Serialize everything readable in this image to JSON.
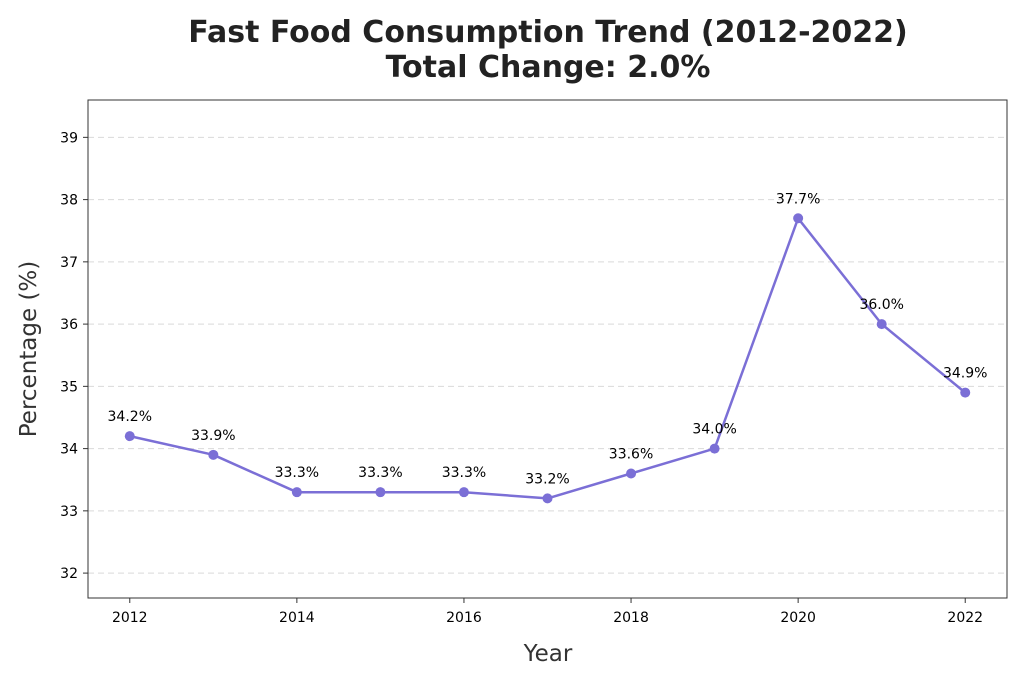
{
  "chart_data": {
    "type": "line",
    "title": "Fast Food Consumption Trend (2012-2022)",
    "subtitle": "Total Change: 2.0%",
    "xlabel": "Year",
    "ylabel": "Percentage (%)",
    "x": [
      2012,
      2013,
      2014,
      2015,
      2016,
      2017,
      2018,
      2019,
      2020,
      2021,
      2022
    ],
    "series": [
      {
        "values": [
          34.2,
          33.9,
          33.3,
          33.3,
          33.3,
          33.2,
          33.6,
          34.0,
          37.7,
          36.0,
          34.9
        ],
        "data_labels": [
          "34.2%",
          "33.9%",
          "33.3%",
          "33.3%",
          "33.3%",
          "33.2%",
          "33.6%",
          "34.0%",
          "37.7%",
          "36.0%",
          "34.9%"
        ],
        "color": "#7b6fd6"
      }
    ],
    "xlim": [
      2011.5,
      2022.5
    ],
    "ylim": [
      31.6,
      39.6
    ],
    "xticks": [
      2012,
      2014,
      2016,
      2018,
      2020,
      2022
    ],
    "yticks": [
      32,
      33,
      34,
      35,
      36,
      37,
      38,
      39
    ],
    "grid": "horizontal dashed",
    "legend": "none"
  }
}
